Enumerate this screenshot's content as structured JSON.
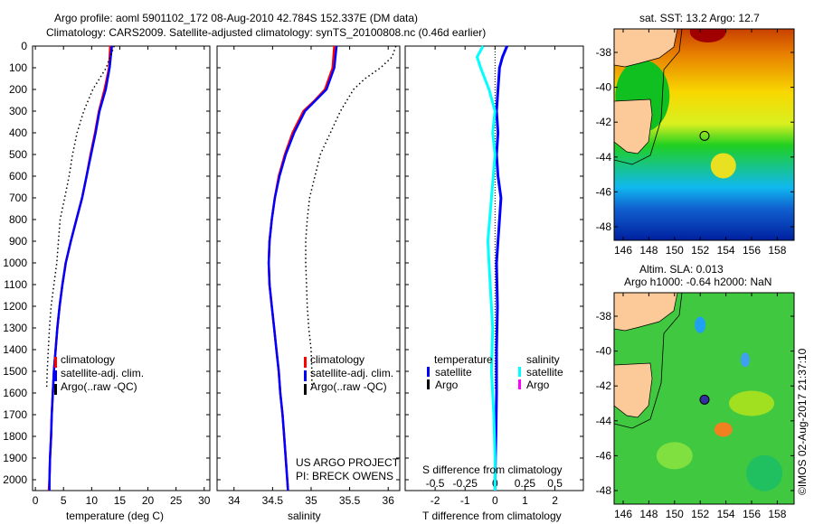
{
  "title_line1": "Argo profile: aoml 5901102_172 08-Aug-2010 42.784S 152.337E (DM data)",
  "title_line2": "Climatology: CARS2009. Satellite-adjusted climatology: synTS_20100808.nc (0.46d earlier)",
  "colors": {
    "climatology": "#ff0000",
    "satellite": "#0000ff",
    "argo": "#000000",
    "sal_satellite": "#00ffff",
    "sal_argo": "#ff00ff",
    "land": "#fcc998"
  },
  "chart_data": [
    {
      "type": "line",
      "name": "temperature",
      "xlabel": "temperature (deg C)",
      "xlim": [
        -0.5,
        31
      ],
      "ylim": [
        2050,
        0
      ],
      "xticks": [
        "0",
        "5",
        "10",
        "15",
        "20",
        "25",
        "30"
      ],
      "xtick_values": [
        0,
        5,
        10,
        15,
        20,
        25,
        30
      ],
      "yticks": [
        "0",
        "100",
        "200",
        "300",
        "400",
        "500",
        "600",
        "700",
        "800",
        "900",
        "1000",
        "1100",
        "1200",
        "1300",
        "1400",
        "1500",
        "1600",
        "1700",
        "1800",
        "1900",
        "2000"
      ],
      "legend": [
        "climatology",
        "satellite-adj. clim.",
        "Argo(..raw -QC)"
      ],
      "series": [
        {
          "name": "climatology",
          "style": "solid",
          "color": "#ff0000",
          "points": [
            [
              13.3,
              0
            ],
            [
              13.1,
              100
            ],
            [
              12.3,
              200
            ],
            [
              11.3,
              300
            ],
            [
              10.6,
              400
            ],
            [
              9.8,
              500
            ],
            [
              9.1,
              600
            ],
            [
              8.3,
              700
            ],
            [
              7.3,
              800
            ],
            [
              6.3,
              900
            ],
            [
              5.4,
              1000
            ],
            [
              4.8,
              1100
            ],
            [
              4.3,
              1200
            ],
            [
              3.9,
              1300
            ],
            [
              3.6,
              1400
            ],
            [
              3.3,
              1500
            ],
            [
              3.1,
              1600
            ],
            [
              2.9,
              1700
            ],
            [
              2.8,
              1800
            ],
            [
              2.6,
              1900
            ],
            [
              2.5,
              2000
            ],
            [
              2.4,
              2050
            ]
          ]
        },
        {
          "name": "satellite-adj. clim.",
          "style": "solid",
          "color": "#0000ff",
          "points": [
            [
              13.6,
              0
            ],
            [
              13.2,
              100
            ],
            [
              12.5,
              200
            ],
            [
              11.4,
              300
            ],
            [
              10.7,
              400
            ],
            [
              9.9,
              500
            ],
            [
              9.1,
              600
            ],
            [
              8.3,
              700
            ],
            [
              7.3,
              800
            ],
            [
              6.3,
              900
            ],
            [
              5.4,
              1000
            ],
            [
              4.8,
              1100
            ],
            [
              4.3,
              1200
            ],
            [
              3.9,
              1300
            ],
            [
              3.6,
              1400
            ],
            [
              3.3,
              1500
            ],
            [
              3.1,
              1600
            ],
            [
              2.9,
              1700
            ],
            [
              2.8,
              1800
            ],
            [
              2.6,
              1900
            ],
            [
              2.5,
              2000
            ],
            [
              2.5,
              2050
            ]
          ]
        },
        {
          "name": "Argo(..raw -QC)",
          "style": "dotted",
          "color": "#000000",
          "points": [
            [
              14,
              0
            ],
            [
              12.6,
              100
            ],
            [
              10.2,
              200
            ],
            [
              8.6,
              300
            ],
            [
              7.4,
              400
            ],
            [
              6.6,
              500
            ],
            [
              6,
              600
            ],
            [
              5.2,
              700
            ],
            [
              4.4,
              800
            ],
            [
              4.1,
              900
            ],
            [
              3.8,
              1000
            ],
            [
              3.3,
              1100
            ],
            [
              2.8,
              1200
            ],
            [
              2.5,
              1300
            ],
            [
              2.3,
              1400
            ],
            [
              2.1,
              1500
            ],
            [
              2,
              1580
            ]
          ]
        }
      ]
    },
    {
      "type": "line",
      "name": "salinity",
      "xlabel": "salinity",
      "xlim": [
        33.78,
        36.15
      ],
      "ylim": [
        2050,
        0
      ],
      "xticks": [
        "34",
        "34.5",
        "35",
        "35.5",
        "36"
      ],
      "xtick_values": [
        34,
        34.5,
        35,
        35.5,
        36
      ],
      "legend": [
        "climatology",
        "satellite-adj. clim.",
        "Argo(..raw -QC)"
      ],
      "annotations": [
        "US ARGO PROJECT",
        "PI: BRECK OWENS"
      ],
      "series": [
        {
          "name": "climatology",
          "style": "solid",
          "color": "#ff0000",
          "points": [
            [
              35.3,
              0
            ],
            [
              35.28,
              100
            ],
            [
              35.18,
              200
            ],
            [
              35.05,
              250
            ],
            [
              34.9,
              300
            ],
            [
              34.76,
              400
            ],
            [
              34.66,
              500
            ],
            [
              34.58,
              600
            ],
            [
              34.53,
              700
            ],
            [
              34.49,
              800
            ],
            [
              34.46,
              900
            ],
            [
              34.45,
              1000
            ],
            [
              34.46,
              1100
            ],
            [
              34.49,
              1200
            ],
            [
              34.52,
              1300
            ],
            [
              34.55,
              1400
            ],
            [
              34.58,
              1500
            ],
            [
              34.6,
              1600
            ],
            [
              34.63,
              1700
            ],
            [
              34.65,
              1800
            ],
            [
              34.67,
              1900
            ],
            [
              34.69,
              2000
            ],
            [
              34.7,
              2050
            ]
          ]
        },
        {
          "name": "satellite-adj. clim.",
          "style": "solid",
          "color": "#0000ff",
          "points": [
            [
              35.33,
              0
            ],
            [
              35.3,
              100
            ],
            [
              35.2,
              200
            ],
            [
              35.06,
              250
            ],
            [
              34.92,
              300
            ],
            [
              34.78,
              400
            ],
            [
              34.67,
              500
            ],
            [
              34.59,
              600
            ],
            [
              34.53,
              700
            ],
            [
              34.49,
              800
            ],
            [
              34.46,
              900
            ],
            [
              34.45,
              1000
            ],
            [
              34.46,
              1100
            ],
            [
              34.49,
              1200
            ],
            [
              34.52,
              1300
            ],
            [
              34.55,
              1400
            ],
            [
              34.58,
              1500
            ],
            [
              34.6,
              1600
            ],
            [
              34.63,
              1700
            ],
            [
              34.65,
              1800
            ],
            [
              34.67,
              1900
            ],
            [
              34.69,
              2000
            ],
            [
              34.7,
              2050
            ]
          ]
        },
        {
          "name": "Argo(..raw -QC)",
          "style": "dotted",
          "color": "#000000",
          "points": [
            [
              36.1,
              0
            ],
            [
              36.05,
              50
            ],
            [
              35.9,
              100
            ],
            [
              35.7,
              150
            ],
            [
              35.55,
              200
            ],
            [
              35.38,
              300
            ],
            [
              35.25,
              400
            ],
            [
              35.12,
              500
            ],
            [
              35.05,
              600
            ],
            [
              34.98,
              700
            ],
            [
              34.95,
              800
            ],
            [
              34.93,
              900
            ],
            [
              34.93,
              1000
            ],
            [
              34.94,
              1100
            ],
            [
              34.95,
              1200
            ],
            [
              34.97,
              1300
            ],
            [
              35,
              1400
            ],
            [
              35.01,
              1500
            ],
            [
              35.01,
              1580
            ]
          ]
        }
      ]
    },
    {
      "type": "line",
      "name": "difference",
      "xlabel": "T difference from climatology",
      "x2label": "S difference from climatology",
      "xlim": [
        -3,
        2.95
      ],
      "xticks": [
        "-2",
        "-1",
        "0",
        "1",
        "2"
      ],
      "xtick_values": [
        -2,
        -1,
        0,
        1,
        2
      ],
      "x2ticks": [
        "-0.5",
        "-0.25",
        "0",
        "0.25",
        "0.5"
      ],
      "legend_headers": [
        "temperature",
        "salinity"
      ],
      "legend": [
        "satellite",
        "Argo",
        "satellite",
        "Argo"
      ],
      "series": [
        {
          "name": "T satellite",
          "color": "#0000ff",
          "points": [
            [
              0.4,
              0
            ],
            [
              0.25,
              50
            ],
            [
              0.15,
              100
            ],
            [
              0.1,
              200
            ],
            [
              0.05,
              300
            ],
            [
              0.1,
              400
            ],
            [
              0.05,
              500
            ],
            [
              0.1,
              600
            ],
            [
              0.2,
              700
            ],
            [
              0.15,
              800
            ],
            [
              0.1,
              900
            ],
            [
              0.05,
              1000
            ],
            [
              0.08,
              1200
            ],
            [
              0.05,
              1400
            ],
            [
              0.05,
              1600
            ],
            [
              0.03,
              1800
            ],
            [
              0.0,
              2000
            ],
            [
              0.0,
              2050
            ]
          ]
        },
        {
          "name": "S satellite",
          "color": "#00ffff",
          "points": [
            [
              -0.1,
              0
            ],
            [
              -0.15,
              50
            ],
            [
              -0.12,
              100
            ],
            [
              -0.05,
              200
            ],
            [
              0.0,
              300
            ],
            [
              -0.02,
              400
            ],
            [
              0.0,
              500
            ],
            [
              -0.03,
              700
            ],
            [
              -0.06,
              900
            ],
            [
              -0.04,
              1100
            ],
            [
              -0.02,
              1300
            ],
            [
              -0.03,
              1500
            ],
            [
              -0.01,
              1700
            ],
            [
              0.0,
              1900
            ],
            [
              0.0,
              2050
            ]
          ]
        }
      ]
    }
  ],
  "maps": {
    "sst": {
      "title": "sat. SST: 13.2 Argo: 12.7",
      "lon_ticks": [
        "146",
        "148",
        "150",
        "152",
        "154",
        "156",
        "158"
      ],
      "lat_ticks": [
        "-38",
        "-40",
        "-42",
        "-44",
        "-46",
        "-48"
      ]
    },
    "sla": {
      "title1": "Altim. SLA: 0.013",
      "title2": "Argo h1000: -0.64 h2000: NaN",
      "lon_ticks": [
        "146",
        "148",
        "150",
        "152",
        "154",
        "156",
        "158"
      ],
      "lat_ticks": [
        "-38",
        "-40",
        "-42",
        "-44",
        "-46",
        "-48"
      ]
    }
  },
  "credit": "©IMOS 02-Aug-2017 21:37:10"
}
